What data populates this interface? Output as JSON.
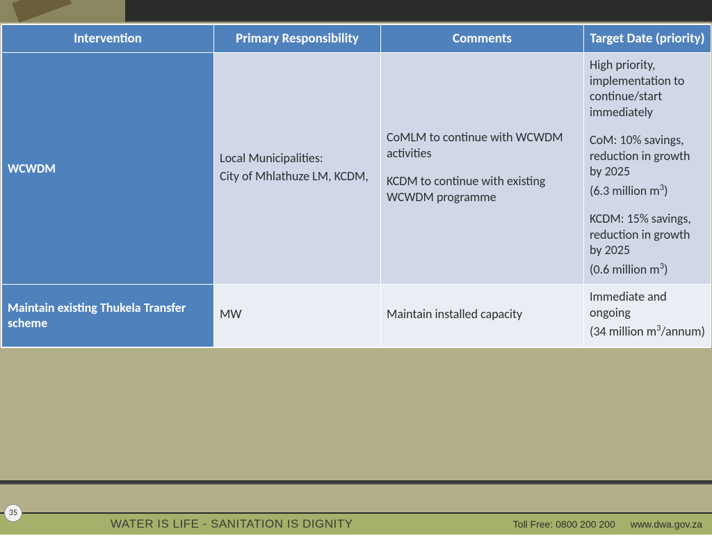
{
  "columns": [
    {
      "label": "Intervention",
      "width": "305"
    },
    {
      "label": "Primary Responsibility",
      "width": "240"
    },
    {
      "label": "Comments",
      "width": "292"
    },
    {
      "label": "Target Date (priority)",
      "width": "183"
    }
  ],
  "rows": [
    {
      "shade": "light",
      "intervention": "WCWDM",
      "responsibility": [
        "Local Municipalities:",
        "City of Mhlathuze LM, KCDM,"
      ],
      "comments": [
        "CoMLM to continue with WCWDM activities",
        "KCDM to continue with existing WCWDM programme"
      ],
      "target": [
        "High priority, implementation to continue/start immediately",
        "CoM: 10% savings, reduction in growth by 2025",
        "(6.3 million m³)",
        "KCDM: 15% savings, reduction in growth by 2025",
        "(0.6 million m³)"
      ],
      "target_gaps": [
        1,
        3
      ]
    },
    {
      "shade": "lighter",
      "intervention": "Maintain existing Thukela Transfer scheme",
      "responsibility": [
        "MW"
      ],
      "comments": [
        "Maintain installed capacity"
      ],
      "target": [
        "Immediate and ongoing",
        "(34 million m³/annum)"
      ],
      "target_gaps": []
    }
  ],
  "footer": {
    "slogan": "WATER IS LIFE - SANITATION IS DIGNITY",
    "toll": "Toll Free: 0800 200 200",
    "site": "www.dwa.gov.za"
  },
  "page_number": "35"
}
